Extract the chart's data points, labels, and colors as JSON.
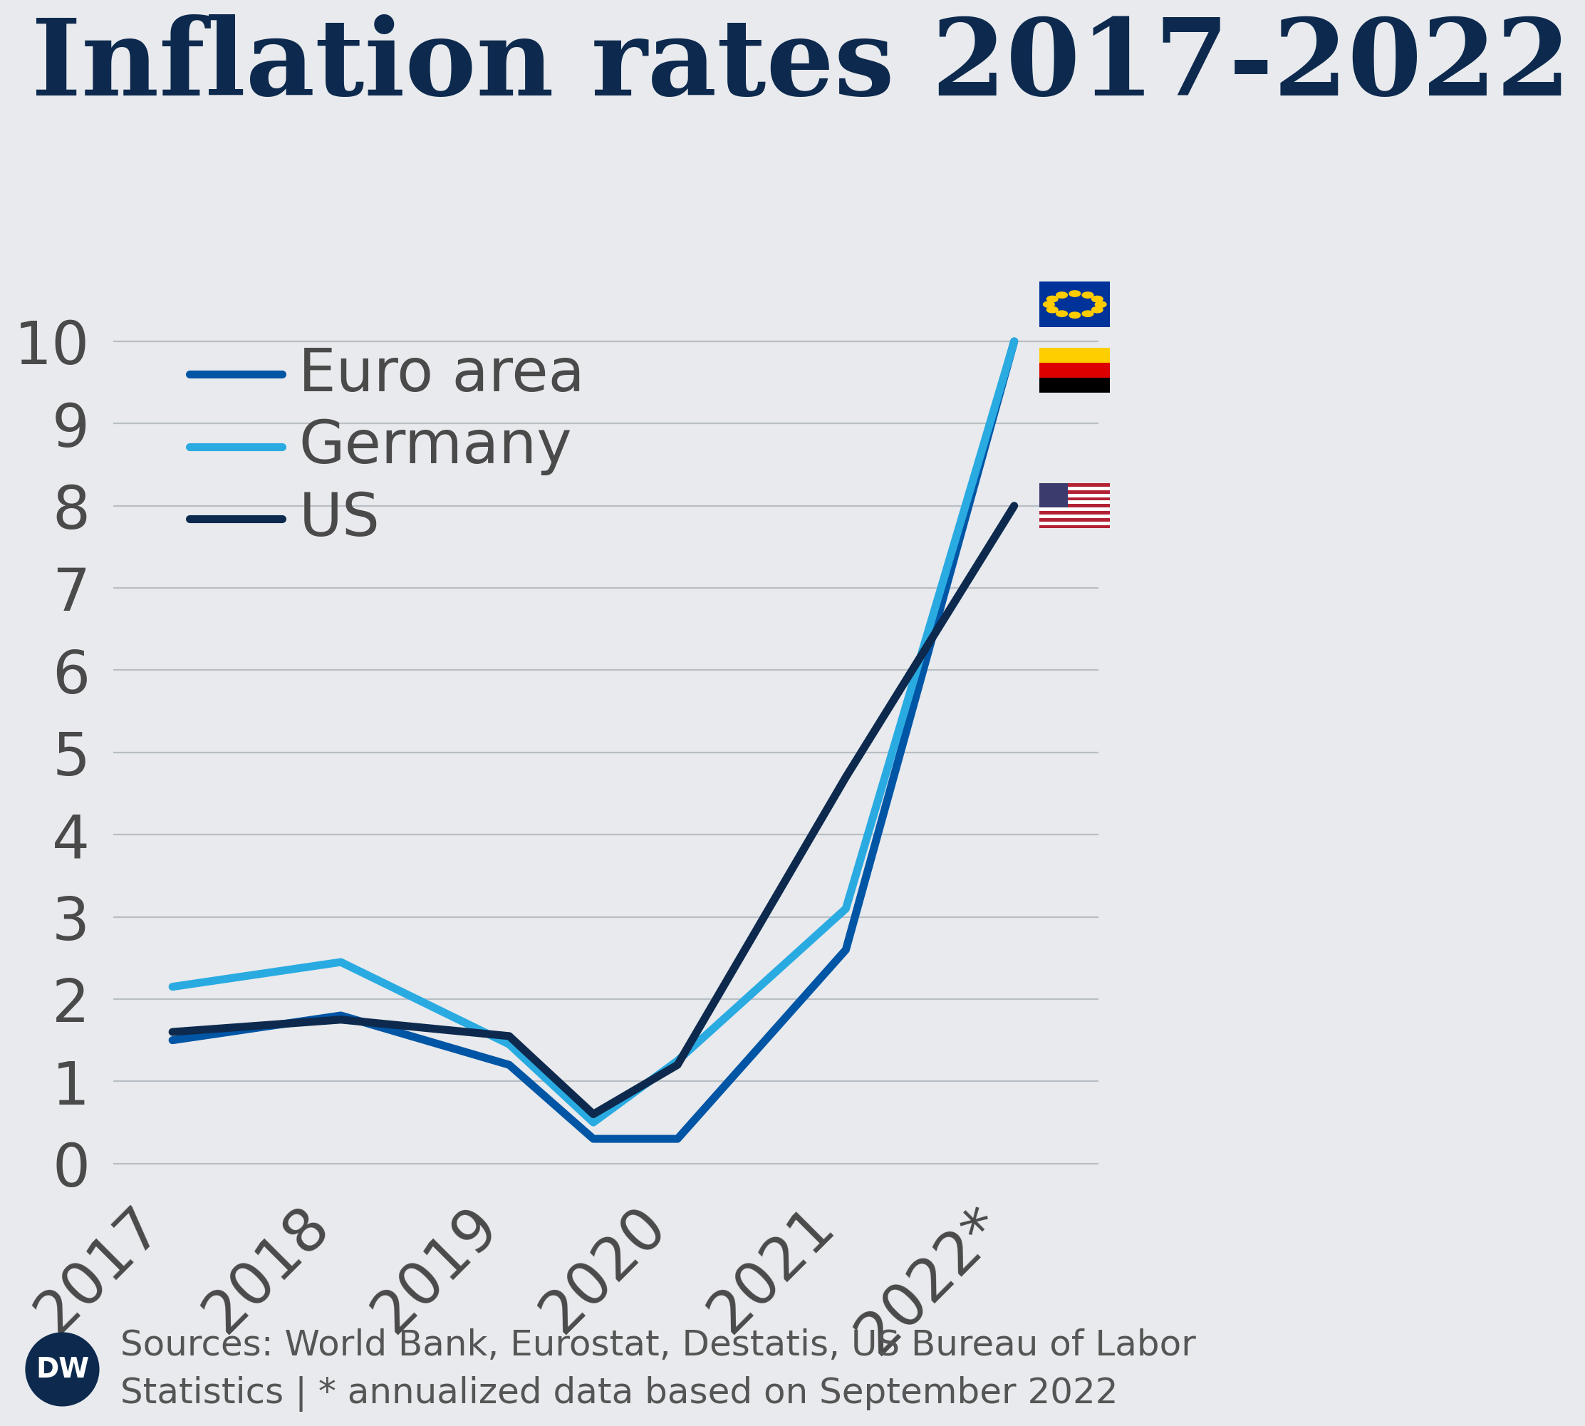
{
  "title": "Inflation rates 2017-2022",
  "background_color": "#e8eaed",
  "title_color": "#0d2a4e",
  "title_fontsize": 54,
  "axis_label_color": "#4a4a4a",
  "axis_label_fontsize": 30,
  "grid_color": "#b8bec4",
  "x_positions": [
    0,
    1,
    2,
    2.5,
    3,
    4,
    5
  ],
  "euro_area": [
    1.5,
    1.8,
    1.2,
    0.3,
    0.3,
    2.6,
    10.0
  ],
  "germany": [
    2.15,
    2.45,
    1.45,
    0.5,
    1.25,
    3.1,
    10.0
  ],
  "us": [
    1.6,
    1.75,
    1.55,
    0.6,
    1.2,
    4.7,
    8.0
  ],
  "euro_area_color": "#0055a5",
  "germany_color": "#29abe2",
  "us_color": "#0d2a4e",
  "legend_label_euro": "Euro area",
  "legend_label_germany": "Germany",
  "legend_label_us": "US",
  "ylim": [
    -0.2,
    11.0
  ],
  "yticks": [
    0,
    1,
    2,
    3,
    4,
    5,
    6,
    7,
    8,
    9,
    10
  ],
  "xtick_positions": [
    0,
    1,
    2,
    3,
    4,
    5
  ],
  "xtick_labels": [
    "2017",
    "2018",
    "2019",
    "2020",
    "2021",
    "2022*"
  ],
  "source_text": "Sources: World Bank, Eurostat, Destatis, US Bureau of Labor\nStatistics | * annualized data based on September 2022",
  "line_width": 4.0
}
